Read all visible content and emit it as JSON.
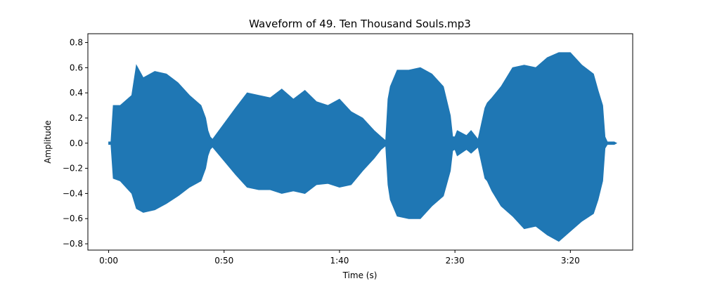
{
  "chart_data": {
    "type": "line",
    "title": "Waveform of 49. Ten Thousand Souls.mp3",
    "xlabel": "Time (s)",
    "ylabel": "Amplitude",
    "xlim": [
      -9,
      227
    ],
    "ylim": [
      -0.85,
      0.87
    ],
    "grid": false,
    "x_ticks": [
      {
        "value": 0,
        "label": "0:00"
      },
      {
        "value": 50,
        "label": "0:50"
      },
      {
        "value": 100,
        "label": "1:40"
      },
      {
        "value": 150,
        "label": "2:30"
      },
      {
        "value": 200,
        "label": "3:20"
      }
    ],
    "y_ticks": [
      {
        "value": -0.8,
        "label": "−0.8"
      },
      {
        "value": -0.6,
        "label": "−0.6"
      },
      {
        "value": -0.4,
        "label": "−0.4"
      },
      {
        "value": -0.2,
        "label": "−0.2"
      },
      {
        "value": 0.0,
        "label": "0.0"
      },
      {
        "value": 0.2,
        "label": "0.2"
      },
      {
        "value": 0.4,
        "label": "0.4"
      },
      {
        "value": 0.6,
        "label": "0.6"
      },
      {
        "value": 0.8,
        "label": "0.8"
      }
    ],
    "series": [
      {
        "color": "#1f77b4",
        "envelope": {
          "time": [
            0,
            1,
            2,
            5,
            10,
            12,
            15,
            20,
            25,
            30,
            35,
            40,
            42,
            43,
            44,
            45,
            55,
            60,
            65,
            70,
            75,
            80,
            85,
            90,
            95,
            100,
            105,
            110,
            115,
            118,
            120,
            121,
            122,
            125,
            130,
            135,
            140,
            145,
            148,
            149,
            150,
            151,
            155,
            157,
            160,
            163,
            164,
            166,
            170,
            175,
            180,
            185,
            190,
            195,
            200,
            205,
            210,
            212,
            214,
            215,
            216,
            219,
            220
          ],
          "max": [
            0.01,
            0.01,
            0.3,
            0.3,
            0.38,
            0.62,
            0.52,
            0.57,
            0.55,
            0.48,
            0.38,
            0.3,
            0.2,
            0.1,
            0.05,
            0.03,
            0.28,
            0.4,
            0.38,
            0.36,
            0.43,
            0.35,
            0.42,
            0.33,
            0.3,
            0.35,
            0.25,
            0.2,
            0.1,
            0.05,
            0.02,
            0.35,
            0.45,
            0.58,
            0.58,
            0.6,
            0.55,
            0.45,
            0.22,
            0.05,
            0.05,
            0.1,
            0.06,
            0.1,
            0.03,
            0.28,
            0.32,
            0.36,
            0.45,
            0.6,
            0.62,
            0.6,
            0.68,
            0.72,
            0.72,
            0.62,
            0.55,
            0.42,
            0.3,
            0.05,
            0.01,
            0.01,
            0.0
          ],
          "min": [
            -0.01,
            -0.01,
            -0.28,
            -0.3,
            -0.4,
            -0.52,
            -0.55,
            -0.53,
            -0.48,
            -0.42,
            -0.35,
            -0.3,
            -0.2,
            -0.1,
            -0.05,
            -0.03,
            -0.25,
            -0.35,
            -0.37,
            -0.37,
            -0.4,
            -0.38,
            -0.4,
            -0.33,
            -0.32,
            -0.35,
            -0.33,
            -0.22,
            -0.12,
            -0.05,
            -0.02,
            -0.33,
            -0.45,
            -0.58,
            -0.6,
            -0.6,
            -0.5,
            -0.42,
            -0.22,
            -0.06,
            -0.05,
            -0.1,
            -0.05,
            -0.08,
            -0.03,
            -0.28,
            -0.3,
            -0.38,
            -0.5,
            -0.58,
            -0.68,
            -0.66,
            -0.73,
            -0.78,
            -0.7,
            -0.62,
            -0.56,
            -0.45,
            -0.3,
            -0.04,
            -0.01,
            -0.01,
            0.0
          ]
        }
      }
    ]
  }
}
